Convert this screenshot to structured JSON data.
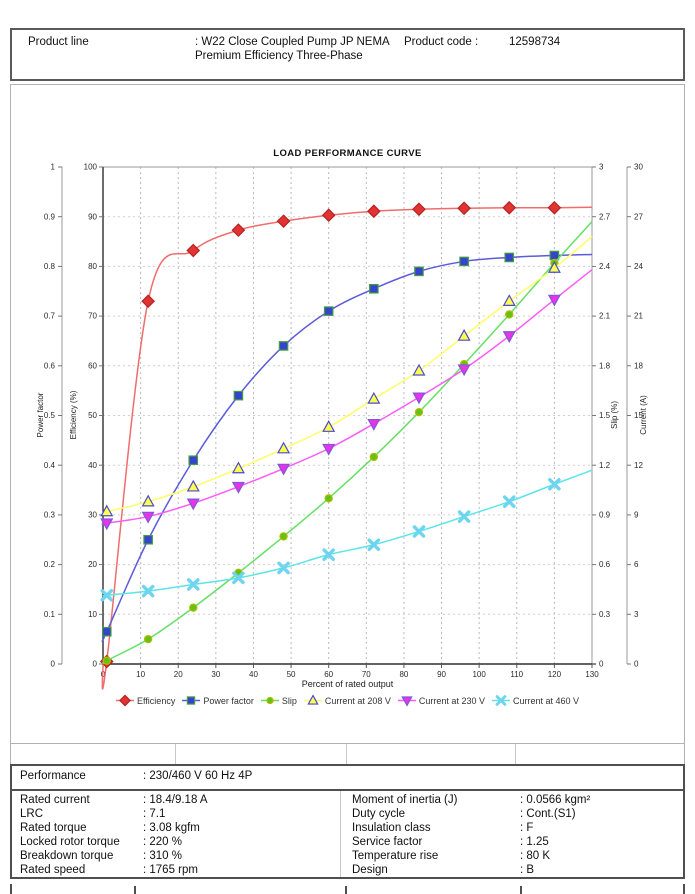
{
  "header": {
    "product_line_label": "Product line",
    "product_line_value": ": W22 Close Coupled Pump JP NEMA Premium Efficiency Three-Phase",
    "product_code_label": "Product code :",
    "product_code_value": "12598734"
  },
  "chart_data": {
    "type": "line",
    "title": "LOAD PERFORMANCE CURVE",
    "xlabel": "Percent of rated output",
    "grid": true,
    "legend_position": "bottom",
    "x_axis": {
      "min": 0,
      "max": 130,
      "ticks": [
        "0",
        "10",
        "20",
        "30",
        "40",
        "50",
        "60",
        "70",
        "80",
        "90",
        "100",
        "110",
        "120",
        "130"
      ]
    },
    "axes": {
      "power_factor": {
        "label": "Power factor",
        "min": 0,
        "max": 1,
        "ticks": [
          "0",
          "0.1",
          "0.2",
          "0.3",
          "0.4",
          "0.5",
          "0.6",
          "0.7",
          "0.8",
          "0.9",
          "1"
        ]
      },
      "efficiency": {
        "label": "Efficiency (%)",
        "min": 0,
        "max": 100,
        "ticks": [
          "0",
          "10",
          "20",
          "30",
          "40",
          "50",
          "60",
          "70",
          "80",
          "90",
          "100"
        ]
      },
      "slip": {
        "label": "Slip (%)",
        "min": 0,
        "max": 3,
        "ticks": [
          "0",
          "0.3",
          "0.6",
          "0.9",
          "1.2",
          "1.5",
          "1.8",
          "2.1",
          "2.4",
          "2.7",
          "3"
        ]
      },
      "current": {
        "label": "Current (A)",
        "min": 0,
        "max": 30,
        "ticks": [
          "0",
          "3",
          "6",
          "9",
          "12",
          "15",
          "18",
          "21",
          "24",
          "27",
          "30"
        ]
      }
    },
    "x_points": [
      1,
      12,
      24,
      36,
      48,
      60,
      72,
      84,
      96,
      108,
      120
    ],
    "series": [
      {
        "name": "Efficiency",
        "axis": "efficiency",
        "marker": "diamond",
        "line_color": "#f16c6c",
        "marker_fill": "#e23333",
        "marker_stroke": "#b52222",
        "value_at_0": 0,
        "values": [
          0.5,
          73,
          83.2,
          87.3,
          89.1,
          90.3,
          91.1,
          91.5,
          91.7,
          91.8,
          91.8
        ],
        "value_at_130": 91.9
      },
      {
        "name": "Power factor",
        "axis": "power_factor",
        "marker": "square",
        "line_color": "#5b5bdb",
        "marker_fill": "#3743cf",
        "marker_stroke": "#3f9e3f",
        "value_at_0": 0.05,
        "values": [
          0.065,
          0.25,
          0.41,
          0.54,
          0.64,
          0.71,
          0.755,
          0.79,
          0.81,
          0.818,
          0.822
        ],
        "value_at_130": 0.824
      },
      {
        "name": "Slip",
        "axis": "slip",
        "marker": "circle",
        "line_color": "#64e064",
        "marker_fill": "#5fc413",
        "marker_stroke": "#b8b800",
        "value_at_0": 0,
        "values": [
          0.02,
          0.15,
          0.34,
          0.55,
          0.77,
          1.0,
          1.25,
          1.52,
          1.81,
          2.11,
          2.42
        ],
        "value_at_130": 2.67
      },
      {
        "name": "Current at 208 V",
        "axis": "current",
        "marker": "triangle-up",
        "line_color": "#ffff66",
        "marker_fill": "#ffff4d",
        "marker_stroke": "#4a4ad0",
        "value_at_0": 9.15,
        "values": [
          9.2,
          9.8,
          10.7,
          11.8,
          13.0,
          14.3,
          16.0,
          17.7,
          19.8,
          21.9,
          23.9
        ],
        "value_at_130": 25.8
      },
      {
        "name": "Current at 230 V",
        "axis": "current",
        "marker": "triangle-down",
        "line_color": "#fb5bfb",
        "marker_fill": "#ea32ea",
        "marker_stroke": "#7d59d3",
        "value_at_0": 8.45,
        "values": [
          8.5,
          8.9,
          9.7,
          10.7,
          11.8,
          13.0,
          14.5,
          16.1,
          17.8,
          19.8,
          22.0
        ],
        "value_at_130": 23.8
      },
      {
        "name": "Current at 460 V",
        "axis": "current",
        "marker": "x",
        "line_color": "#59e5e9",
        "marker_fill": "#6fd5ef",
        "marker_stroke": "#6fd5ef",
        "value_at_0": 4.1,
        "values": [
          4.15,
          4.4,
          4.8,
          5.2,
          5.8,
          6.6,
          7.2,
          8.0,
          8.9,
          9.8,
          10.85
        ],
        "value_at_130": 11.7
      }
    ]
  },
  "performance_table": {
    "section_label": "Performance",
    "section_value": ": 230/460 V 60 Hz 4P",
    "left_rows": [
      {
        "label": "Rated current",
        "value": ": 18.4/9.18 A"
      },
      {
        "label": "LRC",
        "value": ": 7.1"
      },
      {
        "label": "Rated torque",
        "value": ": 3.08 kgfm"
      },
      {
        "label": "Locked rotor torque",
        "value": ": 220 %"
      },
      {
        "label": "Breakdown torque",
        "value": ": 310 %"
      },
      {
        "label": "Rated speed",
        "value": ": 1765 rpm"
      }
    ],
    "right_rows": [
      {
        "label": "Moment of inertia (J)",
        "value": ": 0.0566 kgm²"
      },
      {
        "label": "Duty cycle",
        "value": ": Cont.(S1)"
      },
      {
        "label": "Insulation class",
        "value": ": F"
      },
      {
        "label": "Service factor",
        "value": ": 1.25"
      },
      {
        "label": "Temperature rise",
        "value": ": 80 K"
      },
      {
        "label": "Design",
        "value": ": B"
      }
    ]
  }
}
